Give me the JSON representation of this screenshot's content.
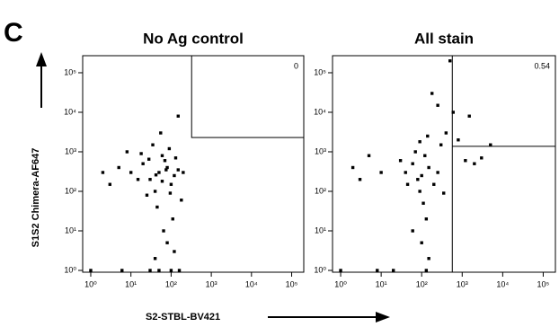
{
  "panel_label": "C",
  "chart_data": [
    {
      "type": "scatter",
      "title": "No Ag control",
      "ylabel": "S1S2 Chimera-AF647",
      "xlabel": "S2-STBL-BV421",
      "log_scale": true,
      "color": "#000000",
      "x": [
        50,
        30,
        80,
        100,
        20,
        60,
        120,
        40,
        70,
        10,
        150,
        25,
        90,
        5,
        45,
        110,
        35,
        200,
        2,
        65,
        55,
        15,
        130,
        80,
        40,
        100,
        1,
        30,
        150,
        8,
        3,
        180,
        60,
        75,
        28,
        95,
        42,
        18,
        120,
        160,
        6,
        50
      ],
      "y": [
        300,
        200,
        400,
        150,
        500,
        800,
        250,
        100,
        600,
        300,
        350,
        80,
        1200,
        400,
        40,
        20,
        1500,
        300,
        300,
        10,
        3000,
        200,
        700,
        5,
        2,
        1,
        1,
        1,
        8000,
        1000,
        150,
        60,
        180,
        350,
        650,
        90,
        260,
        900,
        3,
        1,
        1,
        1
      ],
      "xlim": [
        0.63,
        200000
      ],
      "ylim": [
        0.9,
        270000
      ],
      "xticks": [
        {
          "value": 1,
          "label": "10⁰"
        },
        {
          "value": 10,
          "label": "10¹"
        },
        {
          "value": 100,
          "label": "10²"
        },
        {
          "value": 1000,
          "label": "10³"
        },
        {
          "value": 10000,
          "label": "10⁴"
        },
        {
          "value": 100000,
          "label": "10⁵"
        }
      ],
      "yticks": [
        {
          "value": 1,
          "label": "10⁰"
        },
        {
          "value": 10,
          "label": "10¹"
        },
        {
          "value": 100,
          "label": "10²"
        },
        {
          "value": 1000,
          "label": "10³"
        },
        {
          "value": 10000,
          "label": "10⁴"
        },
        {
          "value": 100000,
          "label": "10⁵"
        }
      ],
      "gate": {
        "x_min": 324,
        "y_min": 2300,
        "value": 0,
        "style": "box"
      }
    },
    {
      "type": "scatter",
      "title": "All stain",
      "log_scale": true,
      "color": "#000000",
      "x": [
        100,
        80,
        150,
        60,
        200,
        120,
        40,
        90,
        250,
        30,
        110,
        130,
        100,
        150,
        70,
        300,
        400,
        800,
        1500,
        600,
        2000,
        3000,
        500,
        10,
        5,
        3,
        2,
        180,
        250,
        130,
        20,
        8,
        1,
        60,
        90,
        45,
        5000,
        140,
        1200,
        350
      ],
      "y": [
        250,
        200,
        400,
        500,
        150,
        800,
        300,
        100,
        300,
        600,
        50,
        20,
        5,
        2,
        1000,
        1500,
        3000,
        2000,
        8000,
        10000,
        500,
        700,
        200000,
        300,
        800,
        200,
        400,
        30000,
        15000,
        1,
        1,
        1,
        1,
        10,
        1800,
        150,
        1500,
        2500,
        600,
        90
      ],
      "xlim": [
        0.63,
        200000
      ],
      "ylim": [
        0.9,
        270000
      ],
      "xticks": [
        {
          "value": 1,
          "label": "10⁰"
        },
        {
          "value": 10,
          "label": "10¹"
        },
        {
          "value": 100,
          "label": "10²"
        },
        {
          "value": 1000,
          "label": "10³"
        },
        {
          "value": 10000,
          "label": "10⁴"
        },
        {
          "value": 100000,
          "label": "10⁵"
        }
      ],
      "yticks": [
        {
          "value": 1,
          "label": "10⁰"
        },
        {
          "value": 10,
          "label": "10¹"
        },
        {
          "value": 100,
          "label": "10²"
        },
        {
          "value": 1000,
          "label": "10³"
        },
        {
          "value": 10000,
          "label": "10⁴"
        },
        {
          "value": 100000,
          "label": "10⁵"
        }
      ],
      "gate": {
        "x_min": 570,
        "y_min": 1380,
        "value": 0.54,
        "style": "quadrant"
      }
    }
  ]
}
